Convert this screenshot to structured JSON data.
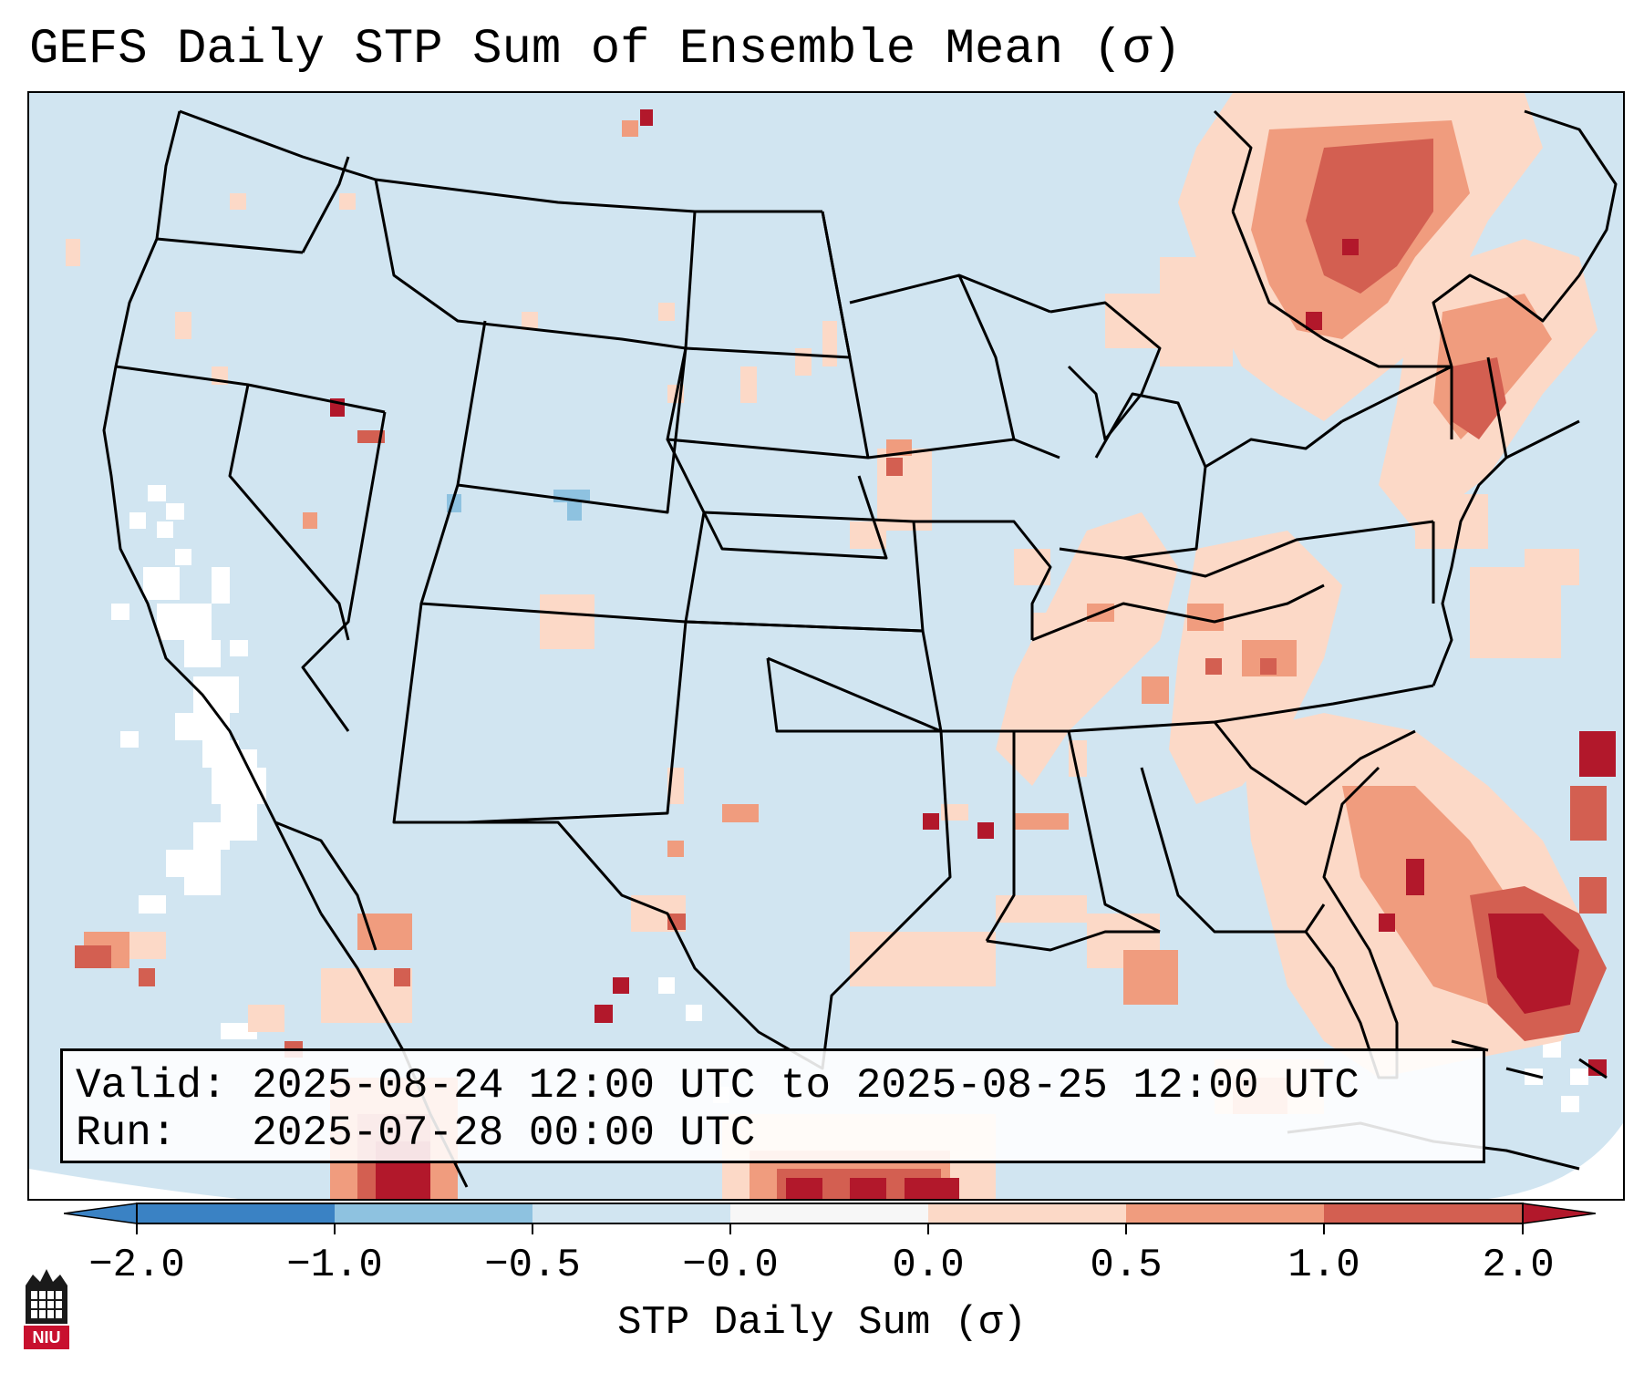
{
  "title": "GEFS Daily STP Sum of Ensemble Mean (σ)",
  "info": {
    "valid_label": "Valid:",
    "valid_value": "2025-08-24 12:00 UTC to 2025-08-25 12:00 UTC",
    "run_label": "Run:",
    "run_value": "2025-07-28 00:00 UTC"
  },
  "colorbar": {
    "label": "STP Daily Sum (σ)",
    "ticks": [
      "−2.0",
      "−1.0",
      "−0.5",
      "−0.0",
      "0.0",
      "0.5",
      "1.0",
      "2.0"
    ],
    "colors": [
      "#3a82c4",
      "#8ec2e0",
      "#d1e5f1",
      "#f7f7f7",
      "#fcd9c7",
      "#f09c7e",
      "#d35f51",
      "#b2182b"
    ],
    "extend": "both"
  },
  "map": {
    "background_value_color": "#d1e5f1",
    "ocean_edge_color": "#ffffff",
    "border_color": "#000000"
  },
  "logo": {
    "text": "NIU",
    "color": "#c8102e"
  }
}
